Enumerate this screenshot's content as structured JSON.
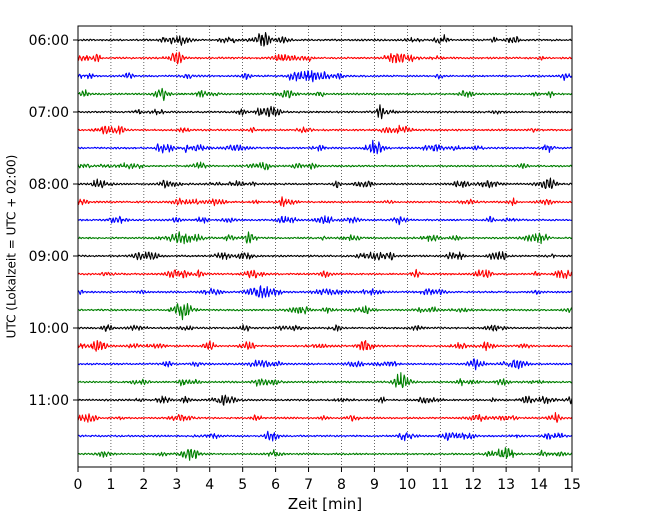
{
  "chart_data": {
    "type": "line",
    "title": "",
    "xlabel": "Zeit  [min]",
    "ylabel": "UTC (Lokalzeit = UTC + 02:00)",
    "xlim": [
      0,
      15
    ],
    "x_ticks": [
      0,
      1,
      2,
      3,
      4,
      5,
      6,
      7,
      8,
      9,
      10,
      11,
      12,
      13,
      14,
      15
    ],
    "y_tick_labels": [
      "06:00",
      "07:00",
      "08:00",
      "09:00",
      "10:00",
      "11:00"
    ],
    "grid": "vertical dotted lines at each minute",
    "trace_interval_minutes": 15,
    "trace_color_cycle": [
      "#000000",
      "#ff0000",
      "#0000ff",
      "#008000"
    ],
    "traces": [
      {
        "start": "06:00",
        "color": "#000000"
      },
      {
        "start": "06:15",
        "color": "#ff0000"
      },
      {
        "start": "06:30",
        "color": "#0000ff"
      },
      {
        "start": "06:45",
        "color": "#008000"
      },
      {
        "start": "07:00",
        "color": "#000000"
      },
      {
        "start": "07:15",
        "color": "#ff0000"
      },
      {
        "start": "07:30",
        "color": "#0000ff"
      },
      {
        "start": "07:45",
        "color": "#008000"
      },
      {
        "start": "08:00",
        "color": "#000000"
      },
      {
        "start": "08:15",
        "color": "#ff0000"
      },
      {
        "start": "08:30",
        "color": "#0000ff"
      },
      {
        "start": "08:45",
        "color": "#008000"
      },
      {
        "start": "09:00",
        "color": "#000000"
      },
      {
        "start": "09:15",
        "color": "#ff0000"
      },
      {
        "start": "09:30",
        "color": "#0000ff"
      },
      {
        "start": "09:45",
        "color": "#008000"
      },
      {
        "start": "10:00",
        "color": "#000000"
      },
      {
        "start": "10:15",
        "color": "#ff0000"
      },
      {
        "start": "10:30",
        "color": "#0000ff"
      },
      {
        "start": "10:45",
        "color": "#008000"
      },
      {
        "start": "11:00",
        "color": "#000000"
      },
      {
        "start": "11:15",
        "color": "#ff0000"
      },
      {
        "start": "11:30",
        "color": "#0000ff"
      },
      {
        "start": "11:45",
        "color": "#008000"
      }
    ]
  }
}
